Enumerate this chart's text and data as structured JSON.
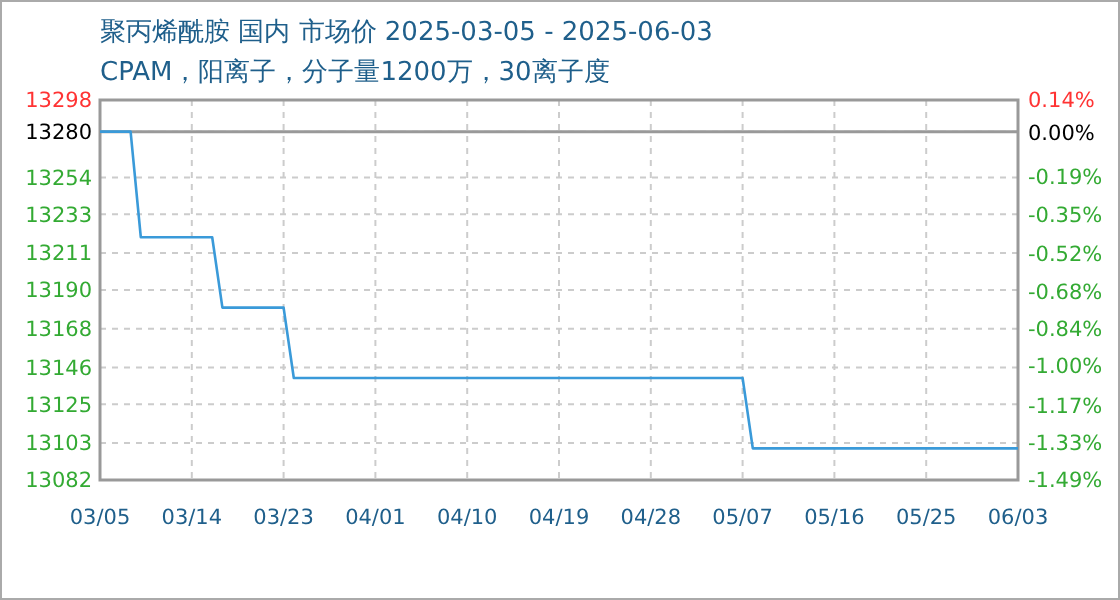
{
  "chart_data": {
    "type": "line",
    "title": "聚丙烯酰胺 国内 市场价 2025-03-05 - 2025-06-03",
    "subtitle": "CPAM，阳离子，分子量1200万，30离子度",
    "x": [
      "2025-03-05",
      "2025-03-08",
      "2025-03-09",
      "2025-03-16",
      "2025-03-17",
      "2025-03-23",
      "2025-03-24",
      "2025-05-07",
      "2025-05-08",
      "2025-06-03"
    ],
    "series": [
      {
        "color": "#3a9ad9",
        "values": [
          13280,
          13280,
          13220,
          13220,
          13180,
          13180,
          13140,
          13140,
          13100,
          13100
        ]
      }
    ],
    "xlim": [
      "2025-03-05",
      "2025-06-03"
    ],
    "xticks": [
      {
        "value": "2025-03-05",
        "label": "03/05"
      },
      {
        "value": "2025-03-14",
        "label": "03/14"
      },
      {
        "value": "2025-03-23",
        "label": "03/23"
      },
      {
        "value": "2025-04-01",
        "label": "04/01"
      },
      {
        "value": "2025-04-10",
        "label": "04/10"
      },
      {
        "value": "2025-04-19",
        "label": "04/19"
      },
      {
        "value": "2025-04-28",
        "label": "04/28"
      },
      {
        "value": "2025-05-07",
        "label": "05/07"
      },
      {
        "value": "2025-05-16",
        "label": "05/16"
      },
      {
        "value": "2025-05-25",
        "label": "05/25"
      },
      {
        "value": "2025-06-03",
        "label": "06/03"
      }
    ],
    "ylim": [
      13082,
      13298
    ],
    "yticks": [
      13082,
      13103,
      13125,
      13146,
      13168,
      13190,
      13211,
      13233,
      13254,
      13280,
      13298
    ],
    "y2lim": [
      -1.49,
      0.14
    ],
    "y2ticks": [
      {
        "value": -1.49,
        "label": "-1.49%"
      },
      {
        "value": -1.33,
        "label": "-1.33%"
      },
      {
        "value": -1.17,
        "label": "-1.17%"
      },
      {
        "value": -1.0,
        "label": "-1.00%"
      },
      {
        "value": -0.84,
        "label": "-0.84%"
      },
      {
        "value": -0.68,
        "label": "-0.68%"
      },
      {
        "value": -0.52,
        "label": "-0.52%"
      },
      {
        "value": -0.35,
        "label": "-0.35%"
      },
      {
        "value": -0.19,
        "label": "-0.19%"
      },
      {
        "value": 0,
        "label": "0.00%"
      },
      {
        "value": 0.14,
        "label": "0.14%"
      }
    ],
    "ref_lines": [
      {
        "axis": "y",
        "value": 13280,
        "color": "#999999"
      }
    ],
    "grid": true,
    "line_style": "solid"
  }
}
